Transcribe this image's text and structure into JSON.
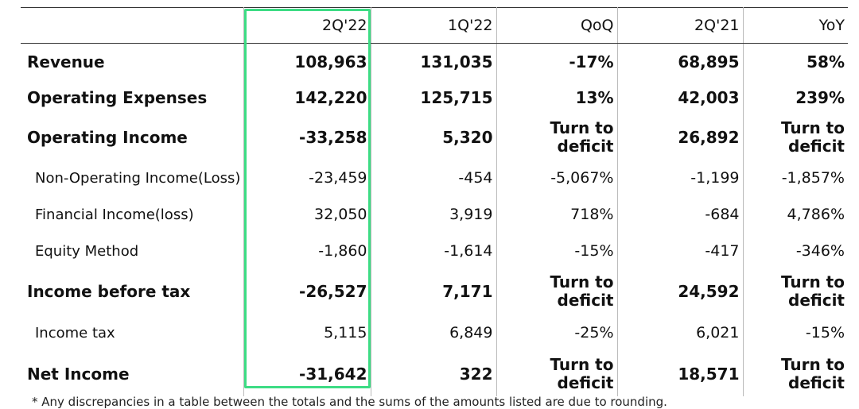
{
  "columns": [
    "2Q'22",
    "1Q'22",
    "QoQ",
    "2Q'21",
    "YoY"
  ],
  "rows": [
    {
      "label": "Revenue",
      "values": [
        "108,963",
        "131,035",
        "-17%",
        "68,895",
        "58%"
      ]
    },
    {
      "label": "Operating Expenses",
      "values": [
        "142,220",
        "125,715",
        "13%",
        "42,003",
        "239%"
      ]
    },
    {
      "label": "Operating Income",
      "values": [
        "-33,258",
        "5,320",
        "Turn to deficit",
        "26,892",
        "Turn to deficit"
      ]
    },
    {
      "label": "Non-Operating Income(Loss)",
      "values": [
        "-23,459",
        "-454",
        "-5,067%",
        "-1,199",
        "-1,857%"
      ]
    },
    {
      "label": "Financial Income(loss)",
      "values": [
        "32,050",
        "3,919",
        "718%",
        "-684",
        "4,786%"
      ]
    },
    {
      "label": "Equity Method",
      "values": [
        "-1,860",
        "-1,614",
        "-15%",
        "-417",
        "-346%"
      ]
    },
    {
      "label": "Income before tax",
      "values": [
        "-26,527",
        "7,171",
        "Turn to deficit",
        "24,592",
        "Turn to deficit"
      ]
    },
    {
      "label": "Income tax",
      "values": [
        "5,115",
        "6,849",
        "-25%",
        "6,021",
        "-15%"
      ]
    },
    {
      "label": "Net Income",
      "values": [
        "-31,642",
        "322",
        "Turn to deficit",
        "18,571",
        "Turn to deficit"
      ]
    }
  ],
  "highlight_color": "#3ddc84",
  "footnote": "* Any discrepancies in a table between the totals and the sums of the amounts listed are due to rounding."
}
